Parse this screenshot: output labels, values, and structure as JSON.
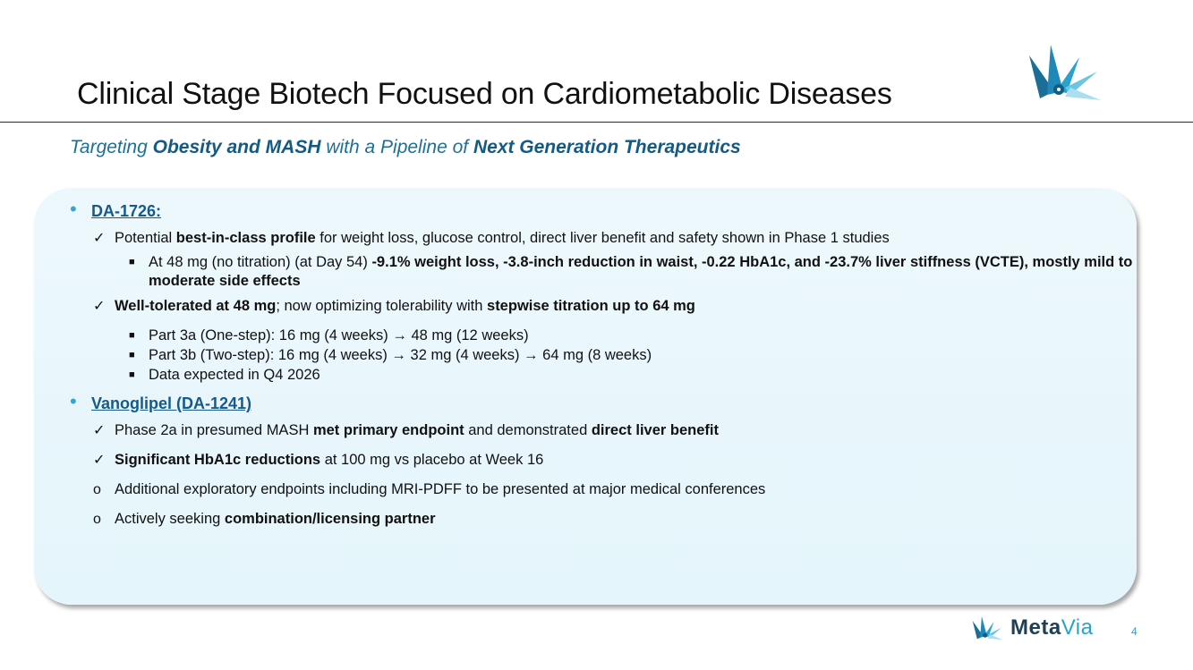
{
  "title": "Clinical Stage Biotech Focused on Cardiometabolic Diseases",
  "subtitle": {
    "p1": "Targeting ",
    "b1": "Obesity and MASH",
    "p2": " with a Pipeline of ",
    "b2": "Next Generation Therapeutics"
  },
  "sections": {
    "da1726": {
      "heading": "DA-1726:",
      "point1": {
        "a": "Potential ",
        "b": "best-in-class profile",
        "c": " for weight loss, glucose control, direct liver benefit and safety shown in Phase 1 studies"
      },
      "sub1": {
        "a": "At 48 mg (no titration) (at Day 54) ",
        "b": "-9.1% weight loss, -3.8-inch reduction in waist, -0.22 HbA1c, and -23.7% liver stiffness (VCTE), mostly mild to moderate side effects"
      },
      "point2": {
        "a": "Well-tolerated at 48 mg",
        "b": "; now optimizing tolerability with ",
        "c": "stepwise titration up to 64 mg"
      },
      "sub2": [
        "Part 3a (One-step): 16 mg (4 weeks) → 48 mg (12 weeks)",
        "Part 3b (Two-step): 16 mg (4 weeks) → 32 mg (4 weeks) → 64 mg (8 weeks)",
        "Data expected in Q4 2026"
      ]
    },
    "vanoglipel": {
      "heading": "Vanoglipel (DA-1241)",
      "point1": {
        "a": "Phase 2a in presumed MASH ",
        "b": "met primary endpoint",
        "c": " and demonstrated ",
        "d": "direct liver benefit"
      },
      "point2": {
        "a": "Significant HbA1c reductions",
        "b": " at 100 mg vs placebo at Week 16"
      },
      "point3": "Additional exploratory endpoints including MRI-PDFF to be presented at major medical conferences",
      "point4": {
        "a": "Actively seeking ",
        "b": "combination/licensing partner"
      }
    }
  },
  "markers": {
    "check": "✓",
    "square": "■",
    "circle": "o",
    "bullet": "•"
  },
  "brand": {
    "meta": "Meta",
    "via": "Via"
  },
  "page_number": "4",
  "colors": {
    "accent": "#2aa3cc",
    "heading": "#155a8a",
    "subtitle": "#1d6f96",
    "panel": "#e8f6fb"
  },
  "icons": {
    "logo": "metavia-logo-icon"
  }
}
